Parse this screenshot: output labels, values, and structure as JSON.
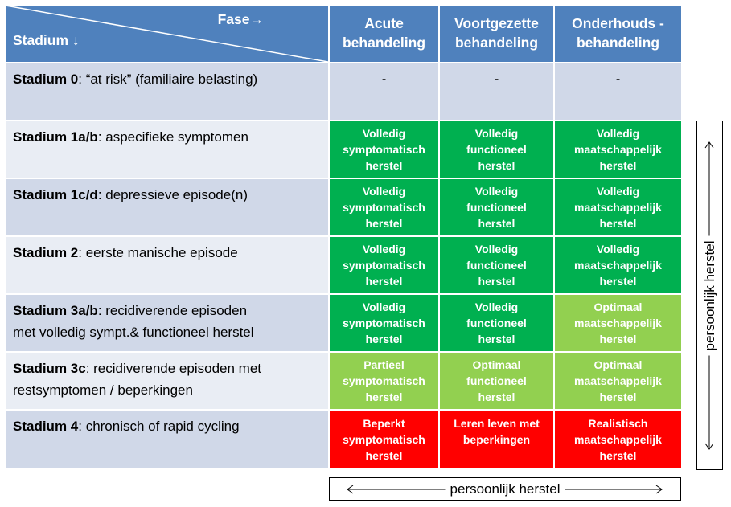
{
  "header": {
    "fase_label": "Fase",
    "fase_arrow": "→",
    "stadium_label": "Stadium",
    "stadium_arrow": "↓",
    "columns": [
      {
        "line1": "Acute",
        "line2": "behandeling"
      },
      {
        "line1": "Voortgezette",
        "line2": "behandeling"
      },
      {
        "line1": "Onderhouds -",
        "line2": "behandeling"
      }
    ]
  },
  "rows": [
    {
      "name": "Stadium 0",
      "desc1": ": “at risk” (familiaire belasting)",
      "desc2": "",
      "cells": [
        {
          "lines": [
            "-"
          ],
          "level": "none"
        },
        {
          "lines": [
            "-"
          ],
          "level": "none"
        },
        {
          "lines": [
            "-"
          ],
          "level": "none"
        }
      ]
    },
    {
      "name": "Stadium 1a/b",
      "desc1": ": aspecifieke  symptomen",
      "desc2": "",
      "cells": [
        {
          "lines": [
            "Volledig",
            "symptomatisch",
            "herstel"
          ],
          "level": "full"
        },
        {
          "lines": [
            "Volledig",
            "functioneel",
            "herstel"
          ],
          "level": "full"
        },
        {
          "lines": [
            "Volledig",
            "maatschappelijk",
            "herstel"
          ],
          "level": "full"
        }
      ]
    },
    {
      "name": "Stadium 1c/d",
      "desc1": ": depressieve episode(n)",
      "desc2": "",
      "cells": [
        {
          "lines": [
            "Volledig",
            "symptomatisch",
            "herstel"
          ],
          "level": "full"
        },
        {
          "lines": [
            "Volledig",
            "functioneel",
            "herstel"
          ],
          "level": "full"
        },
        {
          "lines": [
            "Volledig",
            "maatschappelijk",
            "herstel"
          ],
          "level": "full"
        }
      ]
    },
    {
      "name": "Stadium 2",
      "desc1": ": eerste manische episode",
      "desc2": "",
      "cells": [
        {
          "lines": [
            "Volledig",
            "symptomatisch",
            "herstel"
          ],
          "level": "full"
        },
        {
          "lines": [
            "Volledig",
            "functioneel",
            "herstel"
          ],
          "level": "full"
        },
        {
          "lines": [
            "Volledig",
            "maatschappelijk",
            "herstel"
          ],
          "level": "full"
        }
      ]
    },
    {
      "name": "Stadium 3a/b",
      "desc1": ": recidiverende episoden",
      "desc2": "met volledig  sympt.& functioneel herstel",
      "cells": [
        {
          "lines": [
            "Volledig",
            "symptomatisch",
            "herstel"
          ],
          "level": "full"
        },
        {
          "lines": [
            "Volledig",
            "functioneel",
            "herstel"
          ],
          "level": "full"
        },
        {
          "lines": [
            "Optimaal",
            "maatschappelijk",
            "herstel"
          ],
          "level": "partial"
        }
      ]
    },
    {
      "name": "Stadium 3c",
      "desc1": ": recidiverende episoden met",
      "desc2": "restsymptomen / beperkingen",
      "cells": [
        {
          "lines": [
            "Partieel",
            "symptomatisch",
            "herstel"
          ],
          "level": "partial"
        },
        {
          "lines": [
            "Optimaal",
            "functioneel",
            "herstel"
          ],
          "level": "partial"
        },
        {
          "lines": [
            "Optimaal",
            "maatschappelijk",
            "herstel"
          ],
          "level": "partial"
        }
      ]
    },
    {
      "name": "Stadium 4",
      "desc1": ": chronisch of rapid cycling",
      "desc2": "",
      "cells": [
        {
          "lines": [
            "Beperkt",
            "symptomatisch",
            "herstel"
          ],
          "level": "limited"
        },
        {
          "lines": [
            "Leren leven met",
            "beperkingen"
          ],
          "level": "limited"
        },
        {
          "lines": [
            "Realistisch",
            "maatschappelijk",
            "herstel"
          ],
          "level": "limited"
        }
      ]
    }
  ],
  "side_label": "persoonlijk herstel",
  "bottom_label": "persoonlijk herstel",
  "colors": {
    "header": "#4f81bd",
    "full": "#00b050",
    "partial": "#92d050",
    "limited": "#ff0000",
    "row_dark": "#d0d8e8",
    "row_light": "#e9edf4"
  }
}
